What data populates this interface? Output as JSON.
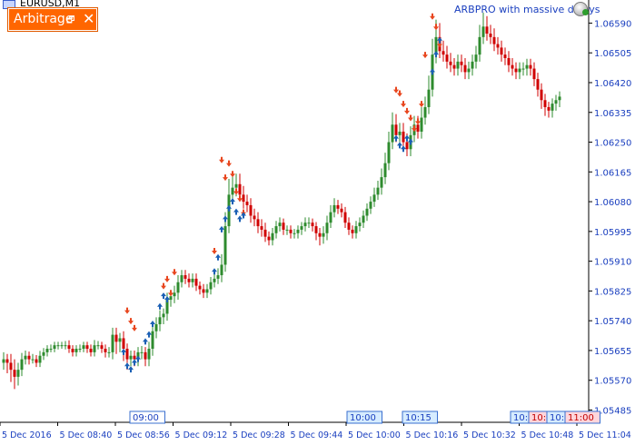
{
  "window": {
    "symbol": "EURUSD,M1",
    "ea_name": "ARBPRO with massive delays"
  },
  "panel": {
    "title": "Arbitrage",
    "restore_glyph": "🗗",
    "close_glyph": "✕"
  },
  "colors": {
    "bull": "#2e8b2e",
    "bear": "#d00000",
    "buy_arrow": "#1a5fb4",
    "sell_arrow": "#e8461e",
    "panel": "#ff6600",
    "axis_text": "#1a3fbf"
  },
  "chart_data": {
    "type": "candlestick",
    "price_ticks": [
      "1.06590",
      "1.06505",
      "1.06420",
      "1.06335",
      "1.06250",
      "1.06165",
      "1.06080",
      "1.05995",
      "1.05910",
      "1.05825",
      "1.05740",
      "1.05655",
      "1.05570",
      "1.05485"
    ],
    "time_ticks": [
      "5 Dec 2016",
      "5 Dec 08:40",
      "5 Dec 08:56",
      "5 Dec 09:12",
      "5 Dec 09:28",
      "5 Dec 09:44",
      "5 Dec 10:00",
      "5 Dec 10:16",
      "5 Dec 10:32",
      "5 Dec 10:48",
      "5 Dec 11:04"
    ],
    "time_markers": [
      {
        "label": "09:00",
        "style": "white"
      },
      {
        "label": "10:00",
        "style": "blue"
      },
      {
        "label": "10:15",
        "style": "blue"
      },
      {
        "label": "10:4",
        "style": "blue"
      },
      {
        "label": "10:5",
        "style": "pink"
      },
      {
        "label": "10:5",
        "style": "blue"
      },
      {
        "label": "11:00",
        "style": "pink"
      }
    ],
    "ylim": [
      1.0545,
      1.0663
    ],
    "close": [
      1.0563,
      1.0562,
      1.056,
      1.0558,
      1.056,
      1.0563,
      1.0564,
      1.0563,
      1.0563,
      1.0562,
      1.0564,
      1.0565,
      1.0566,
      1.0566,
      1.0567,
      1.0567,
      1.0567,
      1.0567,
      1.0566,
      1.0565,
      1.0566,
      1.0566,
      1.0567,
      1.0566,
      1.0565,
      1.0567,
      1.0567,
      1.0566,
      1.0565,
      1.0565,
      1.057,
      1.0568,
      1.0569,
      1.0566,
      1.0563,
      1.0564,
      1.0563,
      1.0565,
      1.0565,
      1.0563,
      1.0566,
      1.0571,
      1.0573,
      1.0575,
      1.0576,
      1.058,
      1.0581,
      1.0582,
      1.0585,
      1.0587,
      1.0586,
      1.0585,
      1.0586,
      1.0584,
      1.0583,
      1.0582,
      1.0583,
      1.0585,
      1.0586,
      1.0587,
      1.059,
      1.0601,
      1.061,
      1.0612,
      1.0613,
      1.061,
      1.0608,
      1.0607,
      1.0604,
      1.0603,
      1.0601,
      1.06,
      1.0598,
      1.0597,
      1.0599,
      1.0601,
      1.0602,
      1.06,
      1.06,
      1.0599,
      1.0599,
      1.06,
      1.0601,
      1.0602,
      1.0602,
      1.0601,
      1.0599,
      1.0598,
      1.0599,
      1.0602,
      1.0605,
      1.0607,
      1.0606,
      1.0605,
      1.0602,
      1.06,
      1.0599,
      1.0601,
      1.0602,
      1.0604,
      1.0606,
      1.0608,
      1.061,
      1.0612,
      1.0615,
      1.0619,
      1.0625,
      1.063,
      1.0627,
      1.0628,
      1.0625,
      1.0623,
      1.0627,
      1.063,
      1.0628,
      1.0632,
      1.0635,
      1.064,
      1.065,
      1.0655,
      1.0651,
      1.065,
      1.0648,
      1.0647,
      1.0646,
      1.0648,
      1.0647,
      1.0645,
      1.0646,
      1.0648,
      1.065,
      1.0655,
      1.0658,
      1.0656,
      1.0655,
      1.0653,
      1.0652,
      1.065,
      1.0649,
      1.0647,
      1.0646,
      1.0645,
      1.0646,
      1.0646,
      1.0647,
      1.0646,
      1.0643,
      1.064,
      1.0637,
      1.0635,
      1.0634,
      1.0636,
      1.0637,
      1.0638
    ],
    "wick_high": [
      0.0002,
      0.00015,
      0.00025,
      0.0003,
      0.0002,
      0.00018,
      0.00015,
      0.00012,
      0.00015,
      0.00012,
      0.00014,
      0.00012,
      0.0001,
      0.00012,
      0.0001,
      0.0001,
      0.0001,
      0.00012,
      0.00014,
      0.0001,
      0.0001,
      0.00012,
      0.0001,
      0.0001,
      0.00012,
      0.00015,
      0.00012,
      0.0001,
      0.00012,
      0.00015,
      0.0002,
      0.0002,
      0.00015,
      0.0002,
      0.00015,
      0.00015,
      0.00015,
      0.00015,
      0.00018,
      0.00015,
      0.0002,
      0.0002,
      0.0002,
      0.0002,
      0.00015,
      0.0002,
      0.00018,
      0.0002,
      0.0002,
      0.00015,
      0.00015,
      0.00015,
      0.00015,
      0.00015,
      0.00012,
      0.00015,
      0.00015,
      0.00015,
      0.00015,
      0.0002,
      0.0003,
      0.0004,
      0.00045,
      0.00035,
      0.0003,
      0.0003,
      0.00025,
      0.0002,
      0.0002,
      0.0002,
      0.0002,
      0.0002,
      0.0002,
      0.00015,
      0.00015,
      0.00015,
      0.00015,
      0.00012,
      0.00012,
      0.00012,
      0.00012,
      0.00012,
      0.00012,
      0.00015,
      0.00015,
      0.00012,
      0.00012,
      0.00015,
      0.0002,
      0.0002,
      0.0002,
      0.0002,
      0.00015,
      0.00015,
      0.00015,
      0.00015,
      0.00012,
      0.00015,
      0.00015,
      0.00015,
      0.00015,
      0.00015,
      0.0002,
      0.0002,
      0.00025,
      0.0003,
      0.0003,
      0.00035,
      0.0003,
      0.00025,
      0.00025,
      0.00025,
      0.00025,
      0.00025,
      0.00025,
      0.0003,
      0.0003,
      0.0004,
      0.00045,
      0.0005,
      0.0004,
      0.0003,
      0.00025,
      0.00025,
      0.0002,
      0.0002,
      0.0002,
      0.0002,
      0.0002,
      0.0002,
      0.00025,
      0.00035,
      0.0004,
      0.0003,
      0.00025,
      0.00025,
      0.0002,
      0.0002,
      0.0002,
      0.0002,
      0.0002,
      0.00018,
      0.00018,
      0.00018,
      0.00018,
      0.00018,
      0.00018,
      0.00018,
      0.00018,
      0.00018,
      0.00015,
      0.00015,
      0.00015,
      0.00015
    ],
    "wick_low": [
      0.0002,
      0.0003,
      0.00035,
      0.00035,
      0.00025,
      0.00018,
      0.00015,
      0.00015,
      0.00012,
      0.00012,
      0.00012,
      0.00012,
      0.00012,
      0.0001,
      0.0001,
      0.00012,
      0.0001,
      0.00012,
      0.00012,
      0.00012,
      0.00012,
      0.0001,
      0.0001,
      0.00012,
      0.00012,
      0.00012,
      0.00012,
      0.00012,
      0.00015,
      0.00015,
      0.0002,
      0.00035,
      0.0003,
      0.00035,
      0.0003,
      0.0002,
      0.0002,
      0.0002,
      0.0002,
      0.0002,
      0.0002,
      0.0002,
      0.0002,
      0.0002,
      0.0002,
      0.0002,
      0.0002,
      0.0002,
      0.0002,
      0.00015,
      0.00015,
      0.00015,
      0.00015,
      0.00015,
      0.00015,
      0.00015,
      0.00015,
      0.00015,
      0.00015,
      0.00015,
      0.0002,
      0.0002,
      0.0002,
      0.00025,
      0.00025,
      0.0002,
      0.0002,
      0.0002,
      0.0002,
      0.0002,
      0.0002,
      0.0002,
      0.00015,
      0.00015,
      0.00015,
      0.00015,
      0.00015,
      0.00015,
      0.00015,
      0.00015,
      0.00015,
      0.00015,
      0.00015,
      0.00015,
      0.00015,
      0.00015,
      0.0002,
      0.00025,
      0.0002,
      0.0002,
      0.00015,
      0.00015,
      0.00015,
      0.00015,
      0.00015,
      0.00015,
      0.00015,
      0.00015,
      0.00015,
      0.00015,
      0.00015,
      0.00015,
      0.00015,
      0.00015,
      0.0002,
      0.0002,
      0.0002,
      0.0002,
      0.0002,
      0.0002,
      0.0002,
      0.0002,
      0.0002,
      0.0002,
      0.0002,
      0.0002,
      0.0002,
      0.0002,
      0.0002,
      0.00025,
      0.0002,
      0.0002,
      0.0002,
      0.0002,
      0.0002,
      0.0002,
      0.0002,
      0.0002,
      0.0002,
      0.0002,
      0.0002,
      0.0002,
      0.0002,
      0.0002,
      0.0002,
      0.0002,
      0.0002,
      0.0002,
      0.0002,
      0.0002,
      0.0002,
      0.0002,
      0.0002,
      0.0002,
      0.0002,
      0.0002,
      0.0002,
      0.0002,
      0.00025,
      0.00025,
      0.0002,
      0.0002,
      0.0002,
      0.0002
    ],
    "sell_signals": [
      [
        34,
        1.0577
      ],
      [
        35,
        1.0574
      ],
      [
        36,
        1.0572
      ],
      [
        44,
        1.0584
      ],
      [
        45,
        1.0586
      ],
      [
        46,
        1.0582
      ],
      [
        47,
        1.0588
      ],
      [
        58,
        1.0594
      ],
      [
        60,
        1.062
      ],
      [
        61,
        1.0615
      ],
      [
        62,
        1.0619
      ],
      [
        63,
        1.0616
      ],
      [
        64,
        1.0611
      ],
      [
        65,
        1.0609
      ],
      [
        66,
        1.0605
      ],
      [
        108,
        1.064
      ],
      [
        109,
        1.0639
      ],
      [
        110,
        1.0636
      ],
      [
        111,
        1.0634
      ],
      [
        112,
        1.0632
      ],
      [
        113,
        1.0629
      ],
      [
        114,
        1.0631
      ],
      [
        115,
        1.0636
      ],
      [
        116,
        1.065
      ],
      [
        118,
        1.0661
      ],
      [
        119,
        1.0658
      ],
      [
        120,
        1.0653
      ]
    ],
    "buy_signals": [
      [
        33,
        1.0565
      ],
      [
        34,
        1.0561
      ],
      [
        35,
        1.056
      ],
      [
        36,
        1.0562
      ],
      [
        37,
        1.0563
      ],
      [
        39,
        1.0568
      ],
      [
        40,
        1.057
      ],
      [
        41,
        1.0573
      ],
      [
        43,
        1.0578
      ],
      [
        44,
        1.0581
      ],
      [
        45,
        1.058
      ],
      [
        58,
        1.0588
      ],
      [
        59,
        1.0592
      ],
      [
        60,
        1.06
      ],
      [
        61,
        1.0603
      ],
      [
        62,
        1.0606
      ],
      [
        63,
        1.0608
      ],
      [
        64,
        1.0605
      ],
      [
        65,
        1.0603
      ],
      [
        66,
        1.0604
      ],
      [
        108,
        1.0626
      ],
      [
        109,
        1.0624
      ],
      [
        110,
        1.0623
      ],
      [
        111,
        1.0626
      ],
      [
        112,
        1.0625
      ],
      [
        118,
        1.0645
      ],
      [
        119,
        1.065
      ],
      [
        120,
        1.0654
      ]
    ]
  }
}
